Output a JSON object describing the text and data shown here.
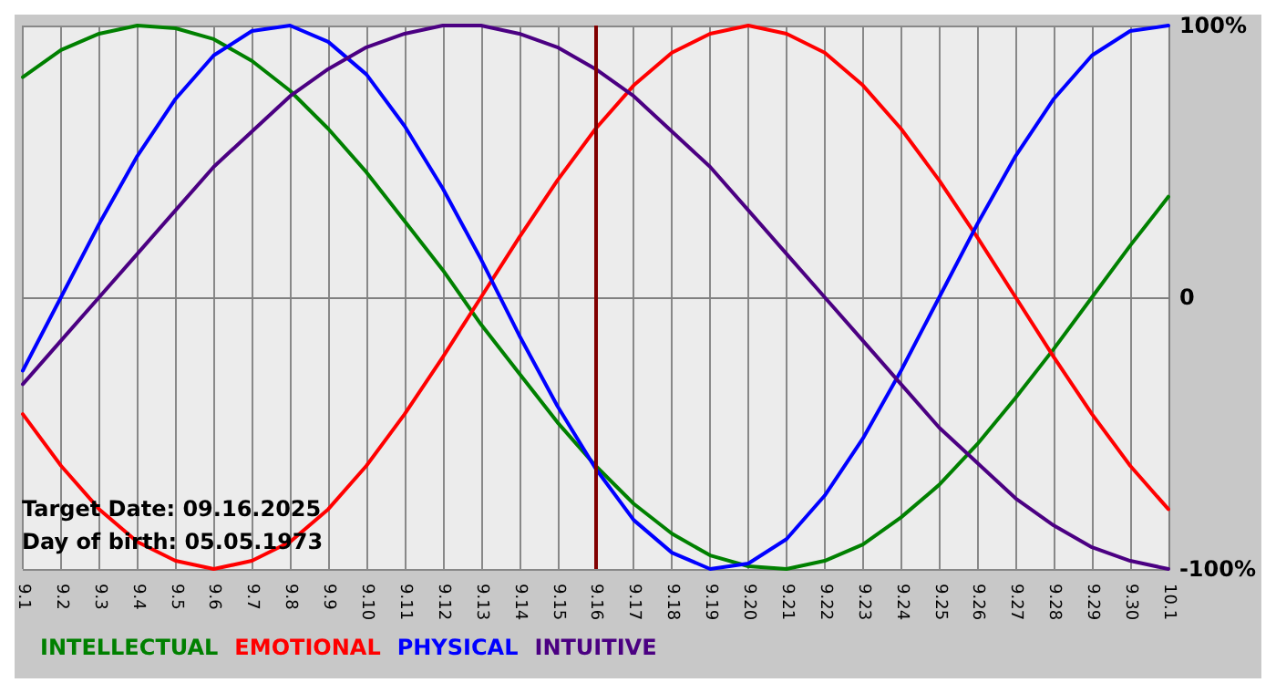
{
  "chart_data": {
    "type": "line",
    "categories": [
      "9.1",
      "9.2",
      "9.3",
      "9.4",
      "9.5",
      "9.6",
      "9.7",
      "9.8",
      "9.9",
      "9.10",
      "9.11",
      "9.12",
      "9.13",
      "9.14",
      "9.15",
      "9.16",
      "9.17",
      "9.18",
      "9.19",
      "9.20",
      "9.21",
      "9.22",
      "9.23",
      "9.24",
      "9.25",
      "9.26",
      "9.27",
      "9.28",
      "9.29",
      "9.30",
      "10.1"
    ],
    "series": [
      {
        "name": "INTELLECTUAL",
        "color": "#008000",
        "values": [
          81,
          91,
          97,
          100,
          99,
          95,
          87,
          76,
          62,
          46,
          28,
          10,
          -10,
          -28,
          -46,
          -62,
          -76,
          -87,
          -95,
          -99,
          -100,
          -97,
          -91,
          -81,
          -69,
          -54,
          -37,
          -19,
          0,
          19,
          37
        ]
      },
      {
        "name": "EMOTIONAL",
        "color": "#ff0000",
        "values": [
          -43,
          -62,
          -78,
          -90,
          -97,
          -100,
          -97,
          -90,
          -78,
          -62,
          -43,
          -22,
          0,
          22,
          43,
          62,
          78,
          90,
          97,
          100,
          97,
          90,
          78,
          62,
          43,
          22,
          0,
          -22,
          -43,
          -62,
          -78
        ]
      },
      {
        "name": "PHYSICAL",
        "color": "#0000ff",
        "values": [
          -27,
          0,
          27,
          52,
          73,
          89,
          98,
          100,
          94,
          82,
          63,
          40,
          14,
          -14,
          -40,
          -63,
          -82,
          -94,
          -100,
          -98,
          -89,
          -73,
          -52,
          -27,
          0,
          27,
          52,
          73,
          89,
          98,
          100
        ]
      },
      {
        "name": "INTUITIVE",
        "color": "#4b0082",
        "values": [
          -32,
          -16,
          0,
          16,
          32,
          48,
          61,
          74,
          84,
          92,
          97,
          100,
          100,
          97,
          92,
          84,
          74,
          61,
          48,
          32,
          16,
          0,
          -16,
          -32,
          -48,
          -61,
          -74,
          -84,
          -92,
          -97,
          -100
        ]
      }
    ],
    "ylim": [
      -100,
      100
    ],
    "yticks": [
      {
        "value": -100,
        "label": "-100%"
      },
      0,
      {
        "value": 100,
        "label": "100%"
      }
    ],
    "grid": true,
    "legend": "bottom left",
    "marker": "none",
    "line_style": "solid",
    "ref_lines": [
      {
        "axis": "x",
        "value": "9.16",
        "color": "#800000"
      }
    ],
    "annotations": [
      "Target Date: 09.16.2025",
      "Day of birth: 05.05.1973"
    ]
  }
}
